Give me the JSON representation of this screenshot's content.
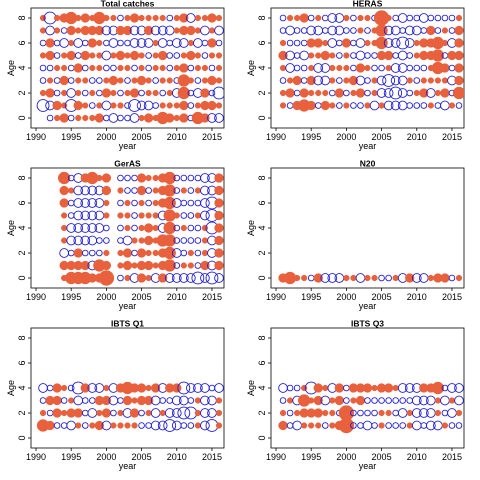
{
  "colors": {
    "positive": "#e8603c",
    "negative": "#1f1fd6",
    "axis": "#000000"
  },
  "chart_data": [
    {
      "type": "scatter",
      "subtype": "bubble",
      "title": "Total catches",
      "xlabel": "year",
      "ylabel": "Age",
      "xlim": [
        1990,
        2016
      ],
      "ylim": [
        0,
        8
      ],
      "xticks": [
        1990,
        1995,
        2000,
        2005,
        2010,
        2015
      ],
      "yticks": [
        0,
        2,
        4,
        6,
        8
      ],
      "years": [
        1991,
        1992,
        1993,
        1994,
        1995,
        1996,
        1997,
        1998,
        1999,
        2000,
        2001,
        2002,
        2003,
        2004,
        2005,
        2006,
        2007,
        2008,
        2009,
        2010,
        2011,
        2012,
        2013,
        2014,
        2015,
        2016
      ],
      "ages": [
        0,
        1,
        2,
        3,
        4,
        5,
        6,
        7,
        8
      ],
      "residuals": [
        [
          0,
          -1,
          1,
          2,
          -1,
          1,
          1,
          1,
          2,
          -1,
          -2,
          -1,
          -1,
          -2,
          1,
          2,
          1,
          3,
          2,
          1,
          2,
          -1,
          3,
          2,
          -2,
          -2
        ],
        [
          -3,
          -2,
          2,
          1,
          -3,
          2,
          1,
          -1,
          1,
          -2,
          1,
          1,
          -1,
          -3,
          -2,
          -2,
          -1,
          1,
          1,
          1,
          2,
          -1,
          1,
          2,
          2,
          1
        ],
        [
          1,
          2,
          -1,
          1,
          -2,
          1,
          -1,
          1,
          -1,
          2,
          1,
          -1,
          1,
          2,
          -1,
          1,
          1,
          -1,
          1,
          -2,
          3,
          -1,
          -2,
          2,
          -1,
          -3
        ],
        [
          -1,
          1,
          -1,
          2,
          -1,
          1,
          1,
          -1,
          -1,
          1,
          2,
          1,
          -1,
          1,
          2,
          1,
          -1,
          1,
          1,
          -1,
          3,
          1,
          -1,
          1,
          2,
          1
        ],
        [
          -1,
          -1,
          1,
          1,
          -1,
          2,
          -1,
          1,
          1,
          -1,
          -1,
          1,
          1,
          -1,
          1,
          -1,
          1,
          1,
          -1,
          1,
          2,
          -1,
          1,
          1,
          -1,
          1
        ],
        [
          1,
          2,
          -1,
          1,
          2,
          -1,
          2,
          1,
          1,
          -2,
          1,
          2,
          1,
          2,
          1,
          -1,
          1,
          2,
          -1,
          -1,
          1,
          2,
          1,
          -1,
          1,
          1
        ],
        [
          -1,
          2,
          -1,
          -2,
          1,
          -2,
          -1,
          2,
          1,
          -1,
          -2,
          -1,
          -1,
          -2,
          -2,
          -2,
          1,
          -2,
          -1,
          -2,
          -2,
          1,
          -2,
          -1,
          2,
          -1
        ],
        [
          1,
          -2,
          1,
          -1,
          2,
          1,
          2,
          2,
          2,
          -2,
          -2,
          2,
          2,
          -2,
          -2,
          2,
          -2,
          -2,
          -2,
          1,
          2,
          2,
          1,
          -2,
          1,
          -2
        ],
        [
          1,
          -3,
          1,
          2,
          3,
          1,
          2,
          1,
          3,
          1,
          1,
          -1,
          1,
          2,
          1,
          1,
          1,
          1,
          -1,
          1,
          2,
          -2,
          1,
          1,
          2,
          1
        ]
      ]
    },
    {
      "type": "scatter",
      "subtype": "bubble",
      "title": "HERAS",
      "xlabel": "year",
      "ylabel": "Age",
      "xlim": [
        1990,
        2016
      ],
      "ylim": [
        0,
        8
      ],
      "xticks": [
        1990,
        1995,
        2000,
        2005,
        2010,
        2015
      ],
      "yticks": [
        0,
        2,
        4,
        6,
        8
      ],
      "years": [
        1991,
        1992,
        1993,
        1994,
        1995,
        1996,
        1997,
        1998,
        1999,
        2000,
        2001,
        2002,
        2003,
        2004,
        2005,
        2006,
        2007,
        2008,
        2009,
        2010,
        2011,
        2012,
        2013,
        2014,
        2015,
        2016
      ],
      "ages": [
        1,
        2,
        3,
        4,
        5,
        6,
        7,
        8
      ],
      "residuals": [
        [
          1,
          -1,
          2,
          3,
          2,
          -1,
          2,
          1,
          -1,
          1,
          -1,
          -1,
          1,
          -2,
          1,
          -2,
          -2,
          -2,
          -1,
          -1,
          -1,
          1,
          -1,
          -2,
          1,
          -1
        ],
        [
          1,
          2,
          -1,
          2,
          1,
          1,
          1,
          -1,
          2,
          -1,
          1,
          2,
          -1,
          1,
          -2,
          -2,
          -3,
          -2,
          -1,
          1,
          2,
          -2,
          1,
          2,
          -1,
          3
        ],
        [
          -1,
          1,
          2,
          -1,
          2,
          -2,
          -2,
          1,
          -1,
          1,
          2,
          -2,
          -1,
          1,
          -2,
          -3,
          -2,
          -2,
          1,
          -1,
          1,
          1,
          1,
          1,
          -2,
          2
        ],
        [
          1,
          -2,
          -1,
          -1,
          1,
          -2,
          -2,
          1,
          1,
          1,
          -1,
          2,
          1,
          -1,
          -1,
          1,
          -2,
          -2,
          -1,
          -1,
          -1,
          1,
          3,
          2,
          -1,
          2
        ],
        [
          2,
          -2,
          -1,
          -2,
          1,
          1,
          2,
          1,
          -1,
          1,
          -1,
          -2,
          -1,
          -1,
          2,
          2,
          -1,
          -2,
          -1,
          1,
          2,
          2,
          3,
          -1,
          2,
          2
        ],
        [
          1,
          -1,
          -1,
          -1,
          2,
          2,
          1,
          -2,
          -1,
          2,
          -1,
          -2,
          1,
          1,
          3,
          -2,
          -2,
          -3,
          -2,
          1,
          2,
          2,
          3,
          1,
          -2,
          2
        ],
        [
          -1,
          -2,
          -1,
          -1,
          -2,
          -2,
          -1,
          -2,
          -2,
          -1,
          -1,
          1,
          -1,
          1,
          3,
          -2,
          -2,
          -1,
          -2,
          -2,
          -1,
          2,
          -1,
          1,
          -1,
          2
        ],
        [
          -1,
          1,
          1,
          2,
          -1,
          1,
          -1,
          -2,
          -2,
          1,
          -1,
          1,
          1,
          -1,
          4,
          1,
          -1,
          -2,
          -1,
          -1,
          -2,
          -1,
          -1,
          -1,
          -1,
          1
        ]
      ]
    },
    {
      "type": "scatter",
      "subtype": "bubble",
      "title": "GerAS",
      "xlabel": "year",
      "ylabel": "Age",
      "xlim": [
        1990,
        2016
      ],
      "ylim": [
        0,
        8
      ],
      "xticks": [
        1990,
        1995,
        2000,
        2005,
        2010,
        2015
      ],
      "yticks": [
        0,
        2,
        4,
        6,
        8
      ],
      "years": [
        1994,
        1995,
        1996,
        1997,
        1998,
        1999,
        2000,
        2001,
        2002,
        2003,
        2004,
        2005,
        2006,
        2007,
        2008,
        2009,
        2010,
        2011,
        2012,
        2013,
        2014,
        2015,
        2016
      ],
      "ages": [
        0,
        1,
        2,
        3,
        4,
        5,
        6,
        7,
        8
      ],
      "residuals": [
        [
          1,
          3,
          3,
          3,
          2,
          2,
          4,
          null,
          -1,
          1,
          -2,
          2,
          1,
          -2,
          2,
          -2,
          -2,
          -2,
          -2,
          -3,
          -2,
          -3,
          -2
        ],
        [
          2,
          2,
          2,
          2,
          -2,
          3,
          2,
          null,
          1,
          2,
          1,
          2,
          2,
          1,
          2,
          3,
          -1,
          1,
          1,
          -1,
          2,
          -2,
          2
        ],
        [
          -2,
          -1,
          2,
          -1,
          -1,
          -1,
          1,
          null,
          1,
          2,
          -1,
          2,
          1,
          1,
          2,
          3,
          -2,
          -1,
          1,
          -1,
          1,
          -2,
          2
        ],
        [
          1,
          -2,
          -2,
          -2,
          -2,
          -1,
          -1,
          null,
          -1,
          -2,
          1,
          1,
          2,
          1,
          3,
          3,
          -1,
          -1,
          -1,
          -1,
          1,
          -2,
          2
        ],
        [
          1,
          -2,
          -2,
          -2,
          -2,
          -2,
          -1,
          null,
          -1,
          1,
          -1,
          1,
          2,
          1,
          -2,
          3,
          -1,
          1,
          -1,
          -1,
          1,
          -3,
          2
        ],
        [
          1,
          -1,
          -2,
          -2,
          -2,
          -2,
          1,
          null,
          1,
          1,
          -1,
          1,
          1,
          1,
          -2,
          3,
          1,
          -1,
          -1,
          1,
          -2,
          -3,
          2
        ],
        [
          2,
          -1,
          -2,
          -2,
          -2,
          -2,
          1,
          null,
          -1,
          1,
          -1,
          1,
          -1,
          1,
          2,
          3,
          -2,
          -1,
          -1,
          -1,
          -2,
          -3,
          2
        ],
        [
          2,
          1,
          -2,
          -2,
          -2,
          -2,
          2,
          null,
          1,
          -1,
          -1,
          2,
          -1,
          1,
          2,
          3,
          -1,
          1,
          -1,
          1,
          -2,
          -2,
          2
        ],
        [
          3,
          -1,
          -2,
          2,
          3,
          1,
          2,
          null,
          -1,
          -1,
          -1,
          2,
          1,
          1,
          2,
          3,
          -1,
          -1,
          -1,
          -1,
          -2,
          -2,
          2
        ]
      ]
    },
    {
      "type": "scatter",
      "subtype": "bubble",
      "title": "N20",
      "xlabel": "year",
      "ylabel": "Age",
      "xlim": [
        1990,
        2016
      ],
      "ylim": [
        0,
        8
      ],
      "xticks": [
        1990,
        1995,
        2000,
        2005,
        2010,
        2015
      ],
      "yticks": [
        0,
        2,
        4,
        6,
        8
      ],
      "years": [
        1991,
        1992,
        1993,
        1994,
        1995,
        1996,
        1997,
        1998,
        1999,
        2000,
        2001,
        2002,
        2003,
        2004,
        2005,
        2006,
        2007,
        2008,
        2009,
        2010,
        2011,
        2012,
        2013,
        2014,
        2015,
        2016
      ],
      "ages": [
        0
      ],
      "residuals": [
        [
          2,
          3,
          1,
          1,
          -1,
          2,
          -2,
          -2,
          -2,
          1,
          1,
          -2,
          1,
          1,
          -1,
          -1,
          1,
          -2,
          2,
          -2,
          -2,
          1,
          2,
          2,
          -1,
          1
        ]
      ]
    },
    {
      "type": "scatter",
      "subtype": "bubble",
      "title": "IBTS Q1",
      "xlabel": "year",
      "ylabel": "Age",
      "xlim": [
        1990,
        2016
      ],
      "ylim": [
        0,
        8
      ],
      "xticks": [
        1990,
        1995,
        2000,
        2005,
        2010,
        2015
      ],
      "yticks": [
        0,
        2,
        4,
        6,
        8
      ],
      "years": [
        1991,
        1992,
        1993,
        1994,
        1995,
        1996,
        1997,
        1998,
        1999,
        2000,
        2001,
        2002,
        2003,
        2004,
        2005,
        2006,
        2007,
        2008,
        2009,
        2010,
        2011,
        2012,
        2013,
        2014,
        2015,
        2016
      ],
      "ages": [
        1,
        2,
        3,
        4
      ],
      "residuals": [
        [
          3,
          2,
          -1,
          -1,
          -2,
          1,
          -1,
          1,
          2,
          -2,
          1,
          1,
          1,
          1,
          -1,
          -1,
          -2,
          -2,
          -3,
          -2,
          -1,
          -1,
          1,
          -2,
          -3,
          1
        ],
        [
          1,
          -1,
          2,
          1,
          2,
          2,
          -1,
          -2,
          1,
          2,
          -1,
          1,
          -2,
          2,
          -1,
          1,
          -2,
          1,
          -2,
          -2,
          -3,
          -3,
          1,
          -2,
          -2,
          1
        ],
        [
          -1,
          2,
          2,
          -1,
          1,
          -2,
          -1,
          -1,
          2,
          2,
          -2,
          -1,
          2,
          1,
          2,
          2,
          -2,
          -1,
          -1,
          -2,
          -2,
          -1,
          1,
          -2,
          -2,
          1
        ],
        [
          -2,
          -1,
          2,
          1,
          -1,
          -3,
          2,
          -2,
          -2,
          1,
          -2,
          2,
          3,
          2,
          2,
          1,
          2,
          -2,
          2,
          2,
          -3,
          -2,
          -2,
          -2,
          -1,
          -2
        ]
      ]
    },
    {
      "type": "scatter",
      "subtype": "bubble",
      "title": "IBTS Q3",
      "xlabel": "year",
      "ylabel": "Age",
      "xlim": [
        1990,
        2016
      ],
      "ylim": [
        0,
        8
      ],
      "xticks": [
        1990,
        1995,
        2000,
        2005,
        2010,
        2015
      ],
      "yticks": [
        0,
        2,
        4,
        6,
        8
      ],
      "years": [
        1991,
        1992,
        1993,
        1994,
        1995,
        1996,
        1997,
        1998,
        1999,
        2000,
        2001,
        2002,
        2003,
        2004,
        2005,
        2006,
        2007,
        2008,
        2009,
        2010,
        2011,
        2012,
        2013,
        2014,
        2015,
        2016
      ],
      "ages": [
        1,
        2,
        3,
        4
      ],
      "residuals": [
        [
          2,
          -1,
          -2,
          1,
          1,
          1,
          -1,
          1,
          2,
          4,
          -1,
          -1,
          -2,
          -1,
          1,
          -1,
          -1,
          -1,
          1,
          -2,
          -1,
          -2,
          -2,
          1,
          -1,
          -1
        ],
        [
          1,
          -1,
          1,
          2,
          2,
          2,
          1,
          1,
          -1,
          4,
          -1,
          -1,
          -1,
          -1,
          1,
          1,
          -1,
          -2,
          1,
          -2,
          -2,
          -2,
          1,
          -1,
          -2,
          1
        ],
        [
          -1,
          1,
          -2,
          3,
          1,
          2,
          -2,
          1,
          2,
          -1,
          1,
          2,
          -1,
          -1,
          -1,
          -1,
          -1,
          -1,
          -1,
          -2,
          -2,
          -2,
          1,
          -2,
          1,
          -2
        ],
        [
          -2,
          -1,
          -1,
          1,
          -3,
          2,
          1,
          -2,
          2,
          -1,
          2,
          2,
          2,
          1,
          2,
          2,
          1,
          -2,
          -2,
          -2,
          2,
          2,
          3,
          -1,
          -2,
          -2
        ]
      ]
    }
  ]
}
